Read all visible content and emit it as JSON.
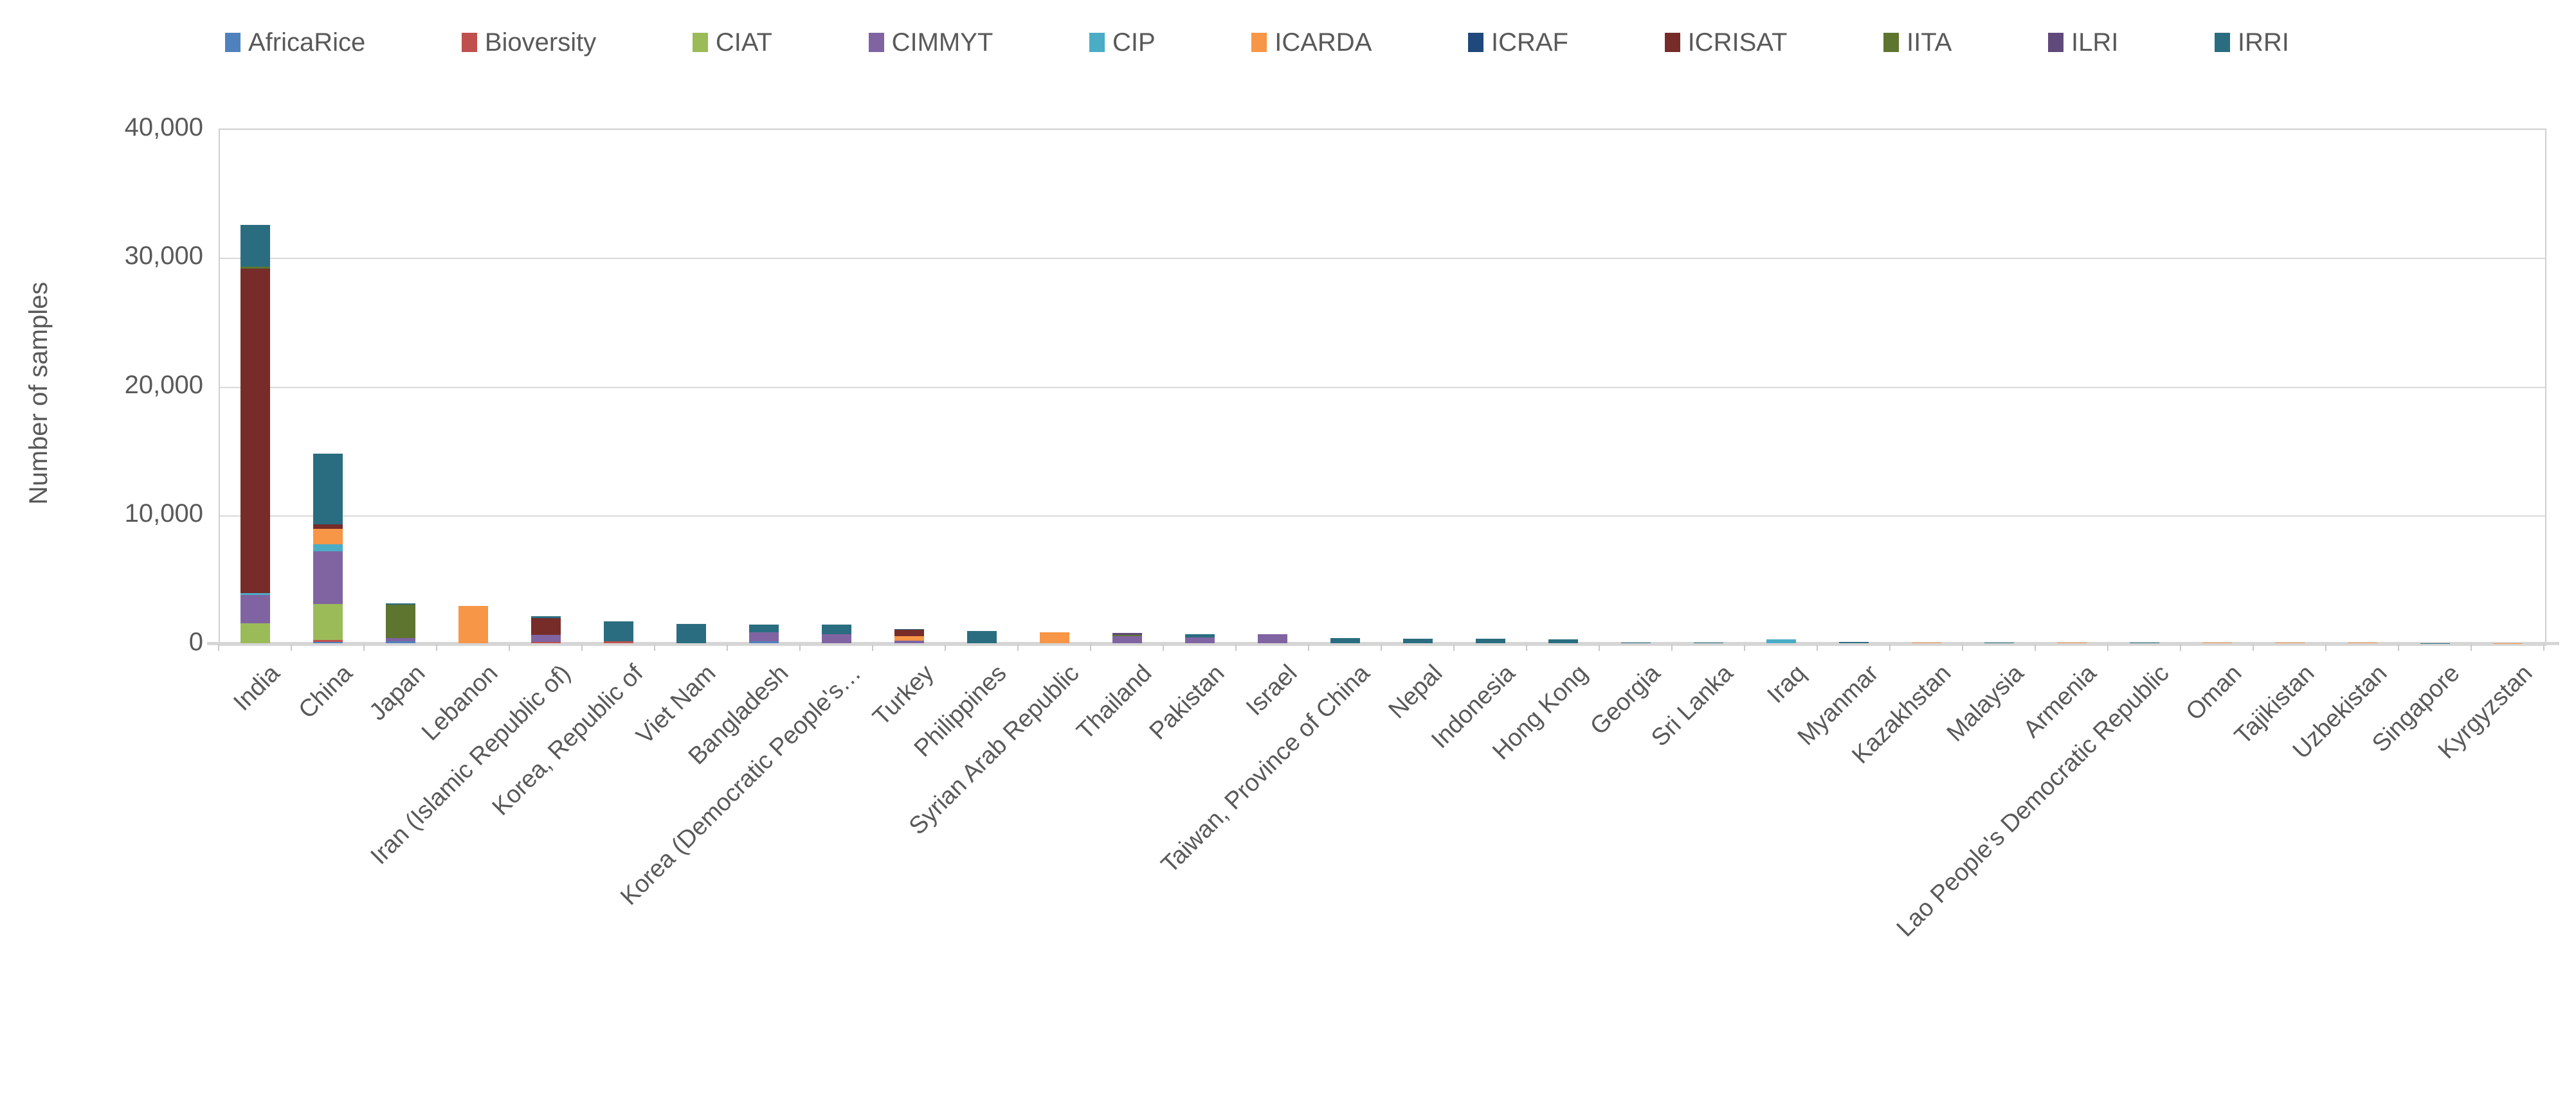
{
  "chart_data": {
    "type": "bar",
    "stacked": true,
    "title": "",
    "xlabel": "",
    "ylabel": "Number of samples",
    "ylim": [
      0,
      40000
    ],
    "yticks": [
      0,
      10000,
      20000,
      30000,
      40000
    ],
    "ytick_labels": [
      "0",
      "10,000",
      "20,000",
      "30,000",
      "40,000"
    ],
    "grid": "horizontal-gridlines-on",
    "legend_position": "top",
    "text_color": "#595959",
    "gridline_color": "#d9d9d9",
    "categories": [
      "India",
      "China",
      "Japan",
      "Lebanon",
      "Iran (Islamic Republic of)",
      "Korea, Republic of",
      "Viet Nam",
      "Bangladesh",
      "Korea (Democratic People's…",
      "Turkey",
      "Philippines",
      "Syrian Arab Republic",
      "Thailand",
      "Pakistan",
      "Israel",
      "Taiwan, Province of China",
      "Nepal",
      "Indonesia",
      "Hong Kong",
      "Georgia",
      "Sri Lanka",
      "Iraq",
      "Myanmar",
      "Kazakhstan",
      "Malaysia",
      "Armenia",
      "Lao People's Democratic Republic",
      "Oman",
      "Tajikistan",
      "Uzbekistan",
      "Singapore",
      "Kyrgyzstan"
    ],
    "series": [
      {
        "name": "AfricaRice",
        "color": "#4F81BD",
        "values": [
          0,
          100,
          170,
          0,
          0,
          0,
          0,
          150,
          0,
          0,
          0,
          0,
          0,
          0,
          0,
          0,
          0,
          0,
          0,
          0,
          0,
          0,
          0,
          0,
          0,
          0,
          0,
          0,
          0,
          0,
          0,
          0
        ]
      },
      {
        "name": "Bioversity",
        "color": "#C0504D",
        "values": [
          0,
          150,
          0,
          0,
          80,
          150,
          0,
          0,
          0,
          0,
          0,
          0,
          0,
          0,
          0,
          0,
          0,
          0,
          0,
          0,
          0,
          0,
          0,
          0,
          0,
          0,
          0,
          0,
          0,
          0,
          0,
          0
        ]
      },
      {
        "name": "CIAT",
        "color": "#9BBB59",
        "values": [
          1550,
          2800,
          0,
          0,
          0,
          0,
          0,
          0,
          0,
          0,
          0,
          0,
          0,
          0,
          0,
          0,
          0,
          0,
          0,
          0,
          0,
          0,
          0,
          0,
          0,
          0,
          0,
          0,
          0,
          0,
          0,
          0
        ]
      },
      {
        "name": "CIMMYT",
        "color": "#8064A2",
        "values": [
          2200,
          4080,
          210,
          0,
          580,
          0,
          0,
          720,
          720,
          200,
          0,
          0,
          530,
          430,
          700,
          0,
          0,
          0,
          0,
          0,
          0,
          0,
          0,
          0,
          0,
          0,
          0,
          0,
          0,
          0,
          0,
          0
        ]
      },
      {
        "name": "CIP",
        "color": "#4BACC6",
        "values": [
          150,
          580,
          0,
          0,
          0,
          0,
          0,
          0,
          0,
          0,
          0,
          0,
          0,
          0,
          0,
          0,
          0,
          0,
          0,
          0,
          0,
          290,
          0,
          0,
          0,
          0,
          0,
          0,
          0,
          0,
          0,
          0
        ]
      },
      {
        "name": "ICARDA",
        "color": "#F79646",
        "values": [
          0,
          1170,
          0,
          2880,
          0,
          0,
          0,
          0,
          0,
          370,
          0,
          860,
          0,
          0,
          0,
          0,
          0,
          0,
          0,
          0,
          0,
          0,
          0,
          70,
          0,
          50,
          0,
          35,
          30,
          25,
          0,
          15
        ]
      },
      {
        "name": "ICRAF",
        "color": "#1F497D",
        "values": [
          0,
          0,
          0,
          0,
          0,
          0,
          0,
          0,
          0,
          0,
          0,
          0,
          0,
          0,
          0,
          0,
          0,
          0,
          0,
          0,
          0,
          0,
          0,
          0,
          0,
          0,
          0,
          0,
          0,
          0,
          0,
          0
        ]
      },
      {
        "name": "ICRISAT",
        "color": "#772C2A",
        "values": [
          25200,
          360,
          0,
          0,
          1270,
          0,
          0,
          0,
          0,
          480,
          0,
          0,
          0,
          0,
          0,
          0,
          0,
          0,
          0,
          0,
          0,
          0,
          0,
          0,
          0,
          0,
          0,
          0,
          0,
          0,
          0,
          0
        ]
      },
      {
        "name": "IITA",
        "color": "#5E7530",
        "values": [
          170,
          0,
          2600,
          0,
          0,
          0,
          0,
          0,
          0,
          0,
          0,
          0,
          130,
          0,
          0,
          0,
          0,
          0,
          0,
          0,
          0,
          0,
          0,
          0,
          0,
          0,
          0,
          0,
          0,
          0,
          0,
          0
        ]
      },
      {
        "name": "ILRI",
        "color": "#604A7B",
        "values": [
          0,
          0,
          0,
          0,
          0,
          0,
          0,
          0,
          0,
          0,
          0,
          0,
          120,
          0,
          0,
          0,
          0,
          0,
          0,
          0,
          0,
          0,
          0,
          0,
          0,
          0,
          0,
          0,
          0,
          0,
          0,
          0
        ]
      },
      {
        "name": "IRRI",
        "color": "#2A6D80",
        "values": [
          3230,
          5475,
          100,
          0,
          180,
          1530,
          1520,
          580,
          710,
          70,
          940,
          0,
          0,
          250,
          0,
          390,
          350,
          330,
          310,
          50,
          40,
          0,
          80,
          0,
          60,
          0,
          45,
          0,
          0,
          0,
          20,
          0
        ]
      }
    ]
  }
}
